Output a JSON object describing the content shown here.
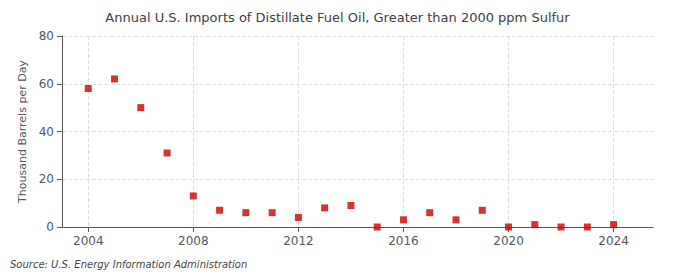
{
  "chart_data": {
    "type": "scatter",
    "title": "Annual U.S. Imports of Distillate Fuel Oil, Greater than 2000 ppm Sulfur",
    "ylabel": "Thousand Barrels per Day",
    "annotation": "Source: U.S. Energy Information Administration",
    "x": [
      2004,
      2005,
      2006,
      2007,
      2008,
      2009,
      2010,
      2011,
      2012,
      2013,
      2014,
      2015,
      2016,
      2017,
      2018,
      2019,
      2020,
      2021,
      2022,
      2023,
      2024
    ],
    "values": [
      58,
      62,
      50,
      31,
      13,
      7,
      6,
      6,
      4,
      8,
      9,
      0,
      3,
      6,
      3,
      7,
      0,
      1,
      0,
      0,
      1
    ],
    "color": "#cc0000",
    "marker": "square",
    "xlim": [
      2003,
      2025.5
    ],
    "xticks": [
      2004,
      2008,
      2012,
      2016,
      2020,
      2024
    ],
    "ylim": [
      0,
      80
    ],
    "yticks": [
      0,
      20,
      40,
      60,
      80
    ],
    "grid": true
  }
}
